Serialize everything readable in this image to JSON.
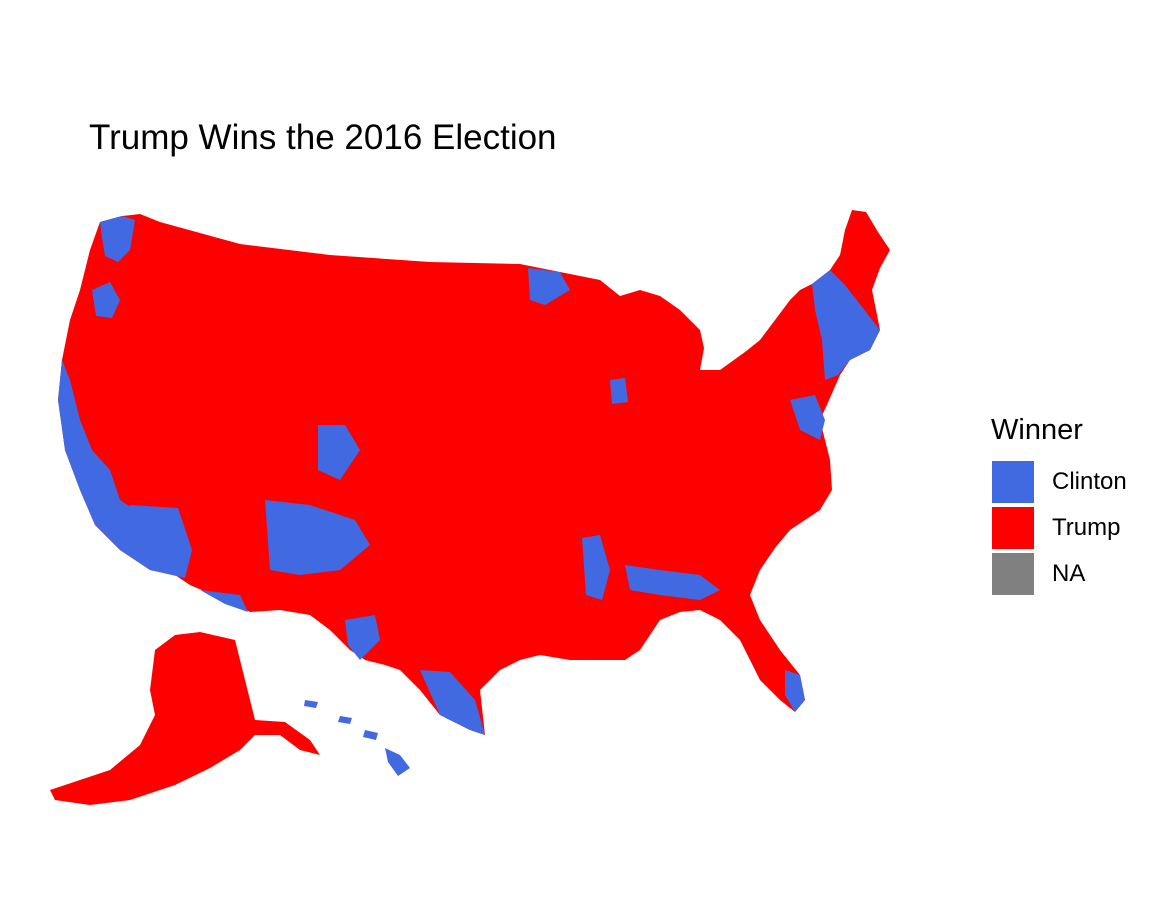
{
  "title": "Trump Wins the 2016 Election",
  "legend": {
    "title": "Winner",
    "items": [
      {
        "label": "Clinton",
        "color": "#4169E1"
      },
      {
        "label": "Trump",
        "color": "#FF0000"
      },
      {
        "label": "NA",
        "color": "#808080"
      }
    ]
  },
  "map": {
    "region": "United States counties",
    "fill_by": "Winner",
    "dominant_winner": "Trump"
  }
}
